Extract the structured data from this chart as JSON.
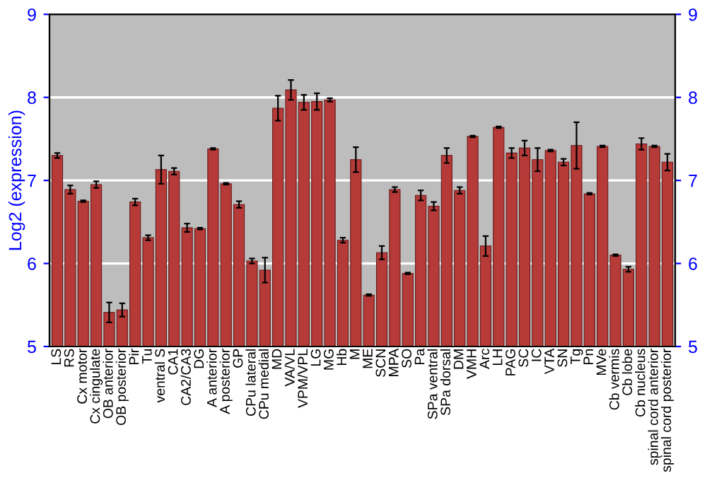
{
  "chart_data": {
    "type": "bar",
    "ylabel": "Log2 (expression)",
    "categories": [
      "LS",
      "RS",
      "Cx motor",
      "Cx cingulate",
      "OB anterior",
      "OB posterior",
      "Pir",
      "Tu",
      "ventral S",
      "CA1",
      "CA2/CA3",
      "DG",
      "A anterior",
      "A posterior",
      "GP",
      "CPu lateral",
      "CPu medial",
      "MD",
      "VA/VL",
      "VPM/VPL",
      "LG",
      "MG",
      "Hb",
      "M",
      "ME",
      "SCN",
      "MPA",
      "SO",
      "Pa",
      "SPa ventral",
      "SPa dorsal",
      "DM",
      "VMH",
      "Arc",
      "LH",
      "PAG",
      "SC",
      "IC",
      "VTA",
      "SN",
      "Tg",
      "Pn",
      "MVe",
      "Cb vermis",
      "Cb lobe",
      "Cb nucleus",
      "spinal cord anterior",
      "spinal cord posterior"
    ],
    "values": [
      7.3,
      6.89,
      6.75,
      6.95,
      5.41,
      5.44,
      6.74,
      6.31,
      7.13,
      7.11,
      6.43,
      6.42,
      7.38,
      6.96,
      6.71,
      6.03,
      5.92,
      7.87,
      8.09,
      7.94,
      7.95,
      7.97,
      6.28,
      7.25,
      5.62,
      6.13,
      6.89,
      5.88,
      6.82,
      6.69,
      7.3,
      6.88,
      7.53,
      6.21,
      7.64,
      7.33,
      7.39,
      7.25,
      7.36,
      7.22,
      7.42,
      6.84,
      7.41,
      6.1,
      5.93,
      7.44,
      7.41,
      7.22
    ],
    "errors": [
      0.03,
      0.05,
      0.01,
      0.04,
      0.12,
      0.08,
      0.04,
      0.03,
      0.17,
      0.04,
      0.05,
      0.01,
      0.01,
      0.01,
      0.04,
      0.03,
      0.15,
      0.15,
      0.12,
      0.09,
      0.1,
      0.02,
      0.03,
      0.15,
      0.01,
      0.08,
      0.03,
      0.01,
      0.06,
      0.05,
      0.09,
      0.04,
      0.01,
      0.12,
      0.01,
      0.06,
      0.09,
      0.14,
      0.01,
      0.04,
      0.28,
      0.01,
      0.01,
      0.01,
      0.03,
      0.07,
      0.01,
      0.1
    ],
    "color": "#b53a38",
    "ylim": [
      5,
      9
    ],
    "yticks": [
      5,
      6,
      7,
      8,
      9
    ],
    "y2lim": [
      5,
      9
    ],
    "y2ticks": [
      5,
      6,
      7,
      8,
      9
    ],
    "grid": "y"
  }
}
